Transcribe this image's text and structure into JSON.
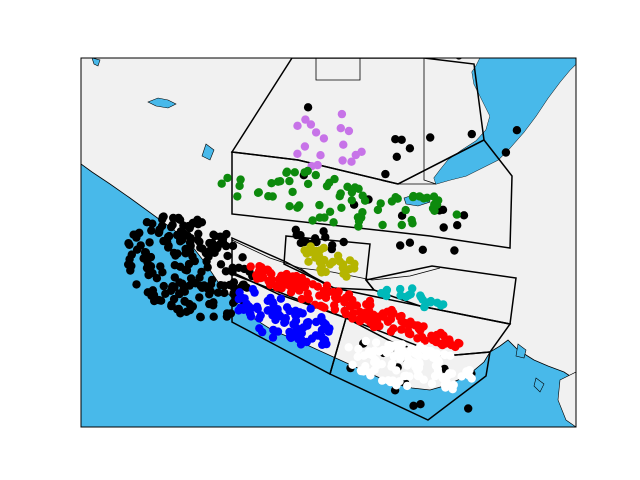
{
  "map": {
    "colors": {
      "ocean": "#48b9ea",
      "land": "#f1f1f1",
      "border": "#000000",
      "frame": "#000000",
      "zone_outline": "#000000"
    },
    "point_groups": [
      {
        "name": "black",
        "color": "#000000",
        "count_estimate": 260
      },
      {
        "name": "magenta",
        "color": "#c773e8",
        "count_estimate": 18
      },
      {
        "name": "green",
        "color": "#0d8a0d",
        "count_estimate": 70
      },
      {
        "name": "olive",
        "color": "#b5b500",
        "count_estimate": 30
      },
      {
        "name": "red",
        "color": "#ff0000",
        "count_estimate": 160
      },
      {
        "name": "blue",
        "color": "#0000ff",
        "count_estimate": 90
      },
      {
        "name": "cyan",
        "color": "#00b9b9",
        "count_estimate": 20
      },
      {
        "name": "white",
        "color": "#ffffff",
        "count_estimate": 110
      }
    ]
  }
}
